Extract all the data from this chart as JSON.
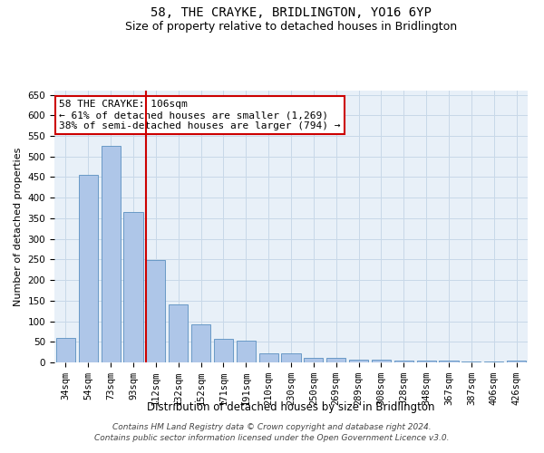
{
  "title": "58, THE CRAYKE, BRIDLINGTON, YO16 6YP",
  "subtitle": "Size of property relative to detached houses in Bridlington",
  "xlabel": "Distribution of detached houses by size in Bridlington",
  "ylabel": "Number of detached properties",
  "categories": [
    "34sqm",
    "54sqm",
    "73sqm",
    "93sqm",
    "112sqm",
    "132sqm",
    "152sqm",
    "171sqm",
    "191sqm",
    "210sqm",
    "230sqm",
    "250sqm",
    "269sqm",
    "289sqm",
    "308sqm",
    "328sqm",
    "348sqm",
    "367sqm",
    "387sqm",
    "406sqm",
    "426sqm"
  ],
  "values": [
    60,
    455,
    525,
    365,
    248,
    140,
    92,
    58,
    53,
    23,
    22,
    10,
    12,
    7,
    6,
    5,
    5,
    4,
    3,
    2,
    4
  ],
  "bar_color": "#aec6e8",
  "bar_edge_color": "#5a8fc0",
  "vline_color": "#cc0000",
  "annotation_text": "58 THE CRAYKE: 106sqm\n← 61% of detached houses are smaller (1,269)\n38% of semi-detached houses are larger (794) →",
  "annotation_box_color": "#ffffff",
  "annotation_box_edge": "#cc0000",
  "ylim": [
    0,
    660
  ],
  "yticks": [
    0,
    50,
    100,
    150,
    200,
    250,
    300,
    350,
    400,
    450,
    500,
    550,
    600,
    650
  ],
  "grid_color": "#c8d8e8",
  "background_color": "#e8f0f8",
  "footer_text": "Contains HM Land Registry data © Crown copyright and database right 2024.\nContains public sector information licensed under the Open Government Licence v3.0.",
  "title_fontsize": 10,
  "subtitle_fontsize": 9,
  "xlabel_fontsize": 8.5,
  "ylabel_fontsize": 8,
  "tick_fontsize": 7.5,
  "annotation_fontsize": 8,
  "footer_fontsize": 6.5
}
